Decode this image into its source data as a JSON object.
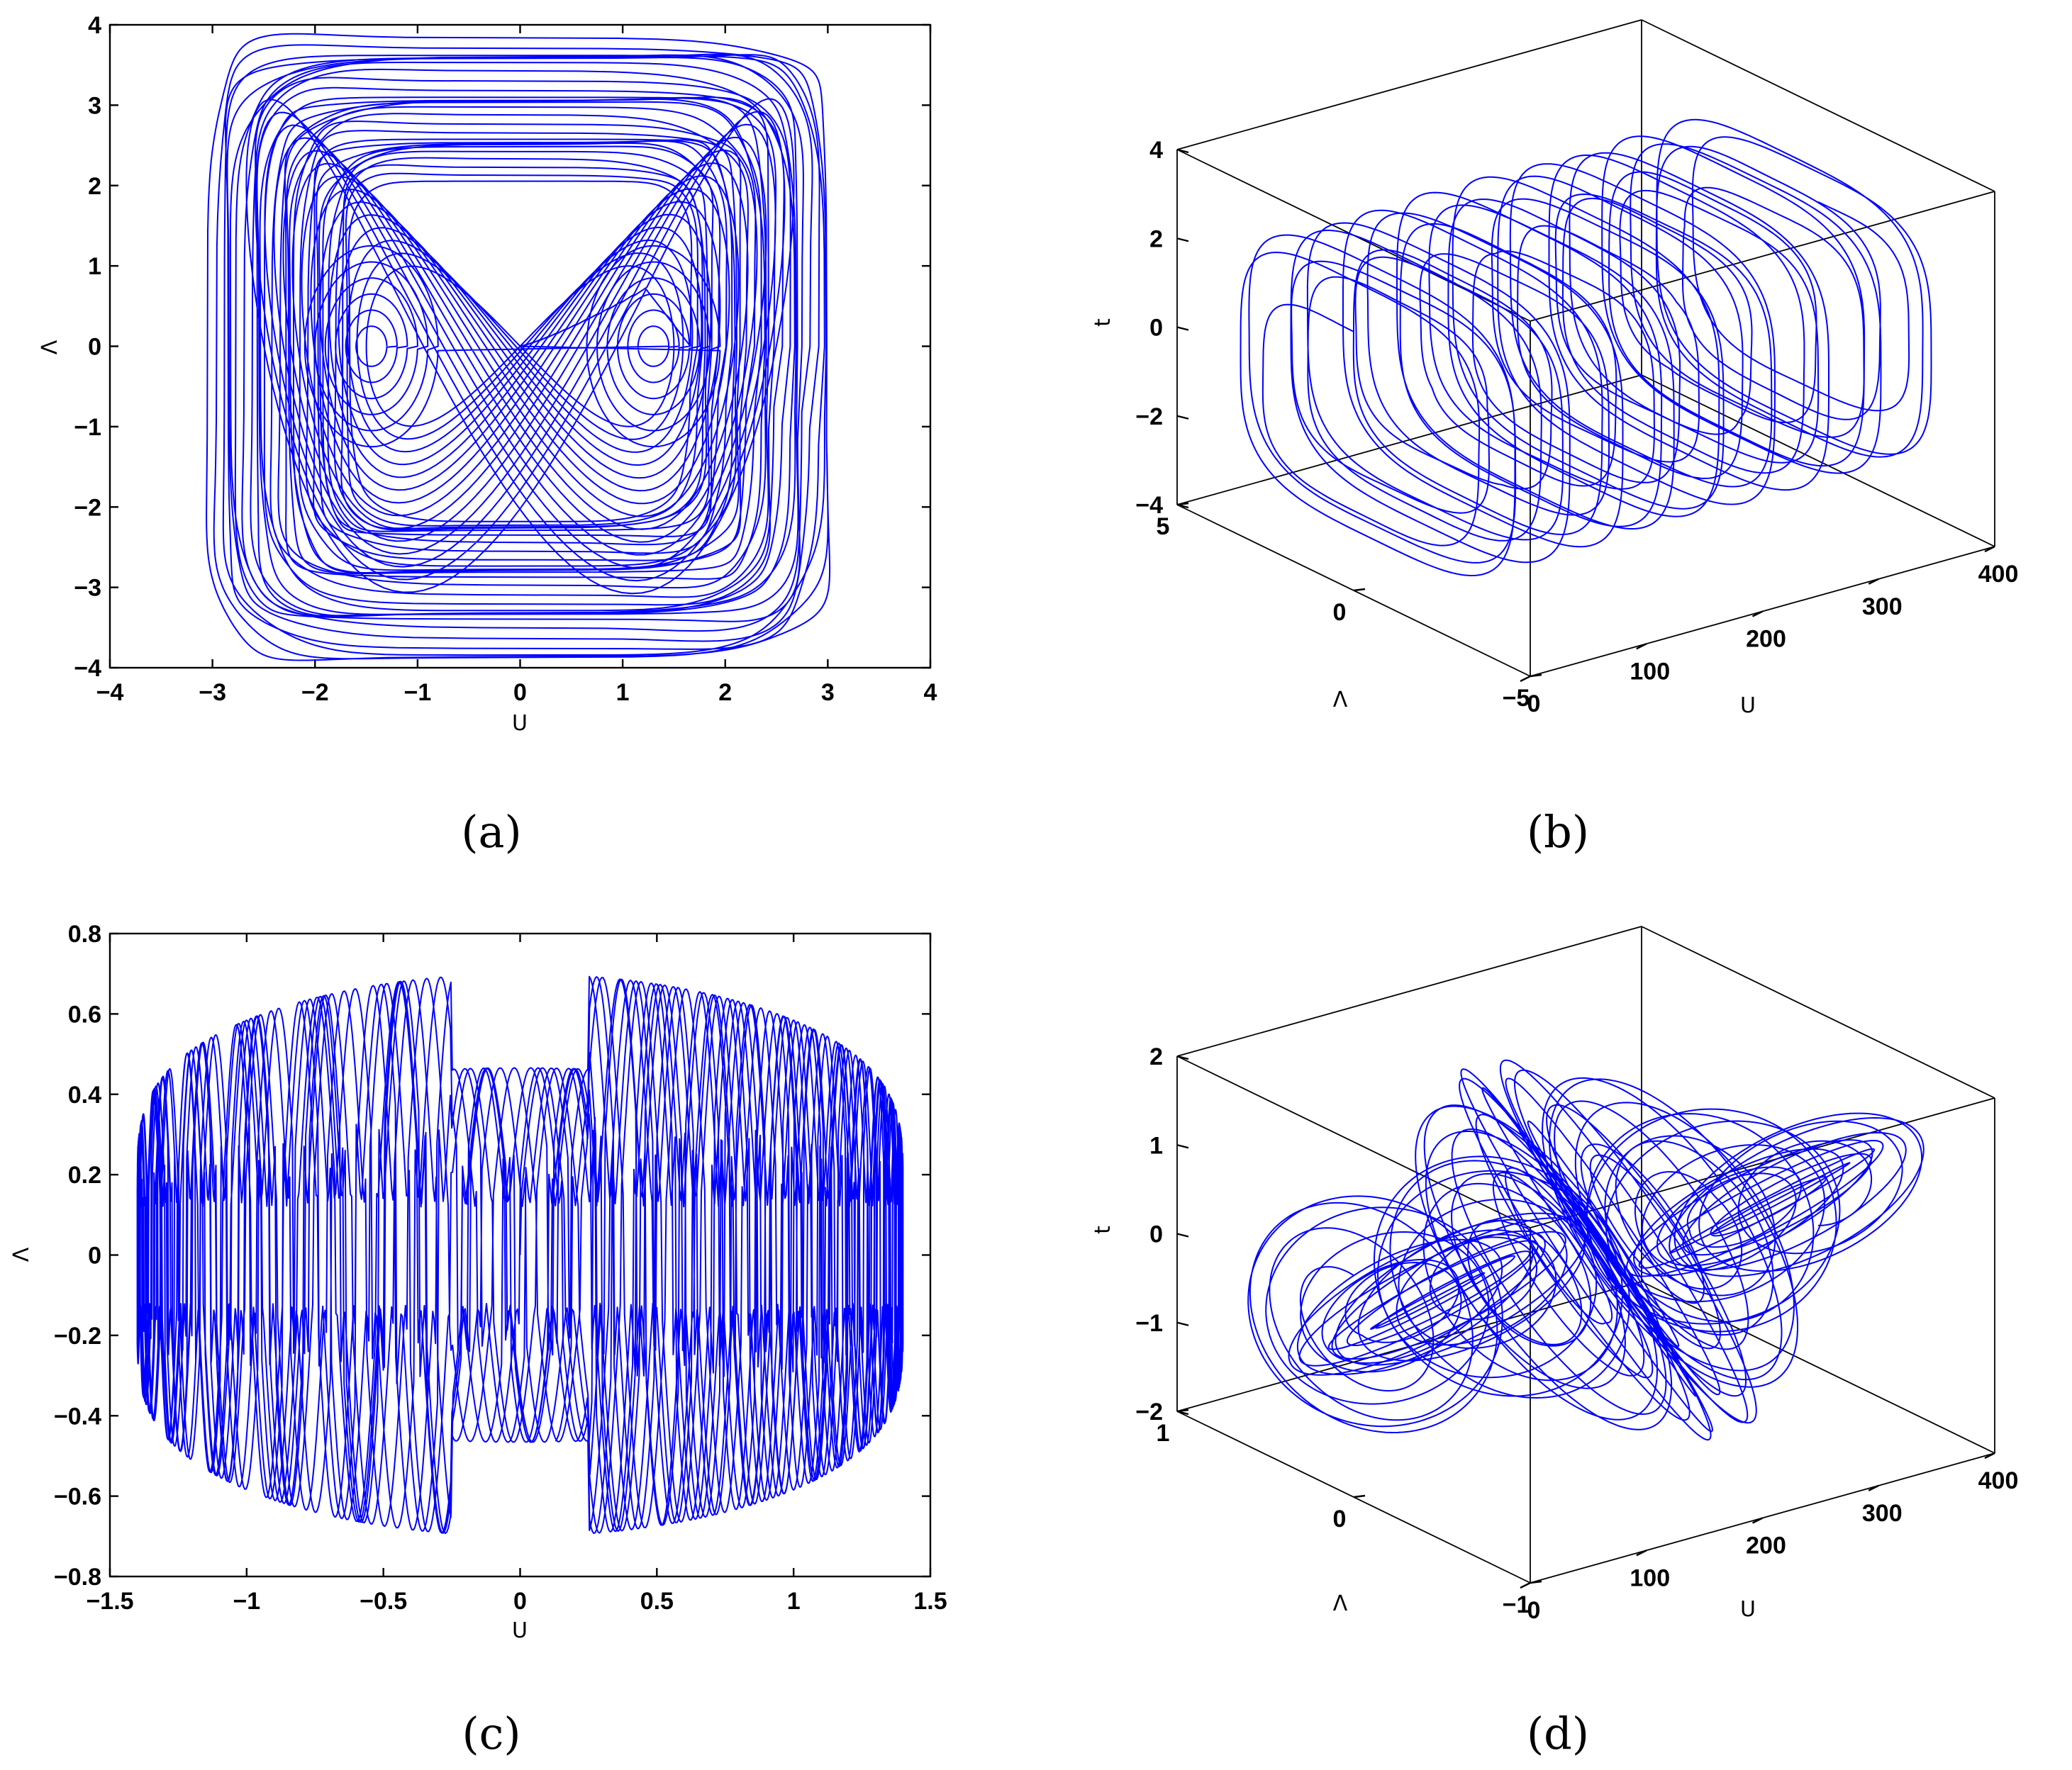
{
  "colors": {
    "trace": "#0000ff",
    "axes": "#000000",
    "background": "#ffffff"
  },
  "chart_data": [
    {
      "id": "a",
      "type": "line",
      "panel_label": "(a)",
      "title": "",
      "xlabel": "U",
      "ylabel": "Λ",
      "xlim": [
        -4,
        4
      ],
      "ylim": [
        -4,
        4
      ],
      "x_ticks": [
        -4,
        -3,
        -2,
        -1,
        0,
        1,
        2,
        3,
        4
      ],
      "y_ticks": [
        -4,
        -3,
        -2,
        -1,
        0,
        1,
        2,
        3,
        4
      ],
      "x_tick_labels": [
        "−4",
        "−3",
        "−2",
        "−1",
        "0",
        "1",
        "2",
        "3",
        "4"
      ],
      "y_tick_labels": [
        "−4",
        "−3",
        "−2",
        "−1",
        "0",
        "1",
        "2",
        "3",
        "4"
      ],
      "grid": false,
      "description_of_series": "phase portrait trajectory Λ vs U",
      "series": [
        {
          "kind": "phase-portrait",
          "x_range": [
            -3.05,
            3.05
          ],
          "y_range": [
            -3.9,
            3.9
          ],
          "inner_lobe_centers": [
            [
              -1.45,
              0.0
            ],
            [
              1.3,
              0.0
            ]
          ]
        }
      ]
    },
    {
      "id": "b",
      "type": "line",
      "projection": "3d",
      "panel_label": "(b)",
      "title": "",
      "xlabel": "U",
      "ylabel": "Λ",
      "zlabel": "t",
      "xlim": [
        0,
        400
      ],
      "ylim": [
        -5,
        5
      ],
      "zlim": [
        -4,
        4
      ],
      "x_ticks": [
        0,
        100,
        200,
        300,
        400
      ],
      "y_ticks": [
        -5,
        0,
        5
      ],
      "z_ticks": [
        -4,
        -2,
        0,
        2,
        4
      ],
      "x_tick_labels": [
        "0",
        "100",
        "200",
        "300",
        "400"
      ],
      "y_tick_labels": [
        "−5",
        "0",
        "5"
      ],
      "z_tick_labels": [
        "−4",
        "−2",
        "0",
        "2",
        "4"
      ],
      "grid": false,
      "series": [
        {
          "kind": "3d-trajectory",
          "x_range": [
            0,
            400
          ],
          "y_range": [
            -3.9,
            3.9
          ],
          "z_range": [
            -3.05,
            3.05
          ]
        }
      ]
    },
    {
      "id": "c",
      "type": "line",
      "panel_label": "(c)",
      "title": "",
      "xlabel": "U",
      "ylabel": "Λ",
      "xlim": [
        -1.5,
        1.5
      ],
      "ylim": [
        -0.8,
        0.8
      ],
      "x_ticks": [
        -1.5,
        -1,
        -0.5,
        0,
        0.5,
        1,
        1.5
      ],
      "y_ticks": [
        -0.8,
        -0.6,
        -0.4,
        -0.2,
        0,
        0.2,
        0.4,
        0.6,
        0.8
      ],
      "x_tick_labels": [
        "−1.5",
        "−1",
        "−0.5",
        "0",
        "0.5",
        "1",
        "1.5"
      ],
      "y_tick_labels": [
        "−0.8",
        "−0.6",
        "−0.4",
        "−0.2",
        "0",
        "0.2",
        "0.4",
        "0.6",
        "0.8"
      ],
      "grid": false,
      "series": [
        {
          "kind": "phase-portrait",
          "x_range": [
            -1.42,
            1.42
          ],
          "y_range": [
            -0.72,
            0.72
          ]
        }
      ]
    },
    {
      "id": "d",
      "type": "line",
      "projection": "3d",
      "panel_label": "(d)",
      "title": "",
      "xlabel": "U",
      "ylabel": "Λ",
      "zlabel": "t",
      "xlim": [
        0,
        400
      ],
      "ylim": [
        -1,
        1
      ],
      "zlim": [
        -2,
        2
      ],
      "x_ticks": [
        0,
        100,
        200,
        300,
        400
      ],
      "y_ticks": [
        -1,
        0,
        1
      ],
      "z_ticks": [
        -2,
        -1,
        0,
        1,
        2
      ],
      "x_tick_labels": [
        "0",
        "100",
        "200",
        "300",
        "400"
      ],
      "y_tick_labels": [
        "−1",
        "0",
        "1"
      ],
      "z_tick_labels": [
        "−2",
        "−1",
        "0",
        "1",
        "2"
      ],
      "grid": false,
      "series": [
        {
          "kind": "3d-trajectory",
          "x_range": [
            0,
            400
          ],
          "y_range": [
            -0.72,
            0.72
          ],
          "z_range": [
            -1.42,
            1.42
          ]
        }
      ]
    }
  ]
}
